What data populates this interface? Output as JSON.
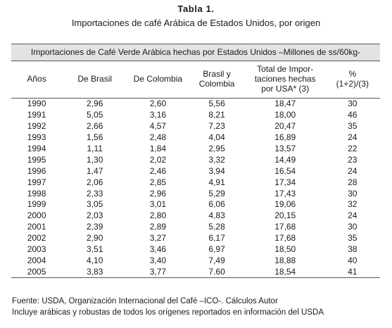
{
  "title": "Tabla 1.",
  "subtitle": "Importaciones de café Arábica de Estados Unidos, por origen",
  "table": {
    "caption": "Importaciones de Café Verde Arábica hechas por Estados Unidos –Millones de ss/60kg-",
    "headers": [
      "Años",
      "De Brasil",
      "De Colombia",
      "Brasil y\nColombia",
      "Total de Impor-\ntaciones hechas\npor USA* (3)",
      "%\n(1+2)/(3)"
    ],
    "rows": [
      [
        "1990",
        "2,96",
        "2,60",
        "5,56",
        "18,47",
        "30"
      ],
      [
        "1991",
        "5,05",
        "3,16",
        "8,21",
        "18,00",
        "46"
      ],
      [
        "1992",
        "2,66",
        "4,57",
        "7,23",
        "20,47",
        "35"
      ],
      [
        "1993",
        "1,56",
        "2,48",
        "4,04",
        "16,89",
        "24"
      ],
      [
        "1994",
        "1,11",
        "1,84",
        "2,95",
        "13,57",
        "22"
      ],
      [
        "1995",
        "1,30",
        "2,02",
        "3,32",
        "14,49",
        "23"
      ],
      [
        "1996",
        "1,47",
        "2,46",
        "3,94",
        "16,54",
        "24"
      ],
      [
        "1997",
        "2,06",
        "2,85",
        "4,91",
        "17,34",
        "28"
      ],
      [
        "1998",
        "2,33",
        "2,96",
        "5,29",
        "17,43",
        "30"
      ],
      [
        "1999",
        "3,05",
        "3,01",
        "6,06",
        "19,06",
        "32"
      ],
      [
        "2000",
        "2,03",
        "2,80",
        "4,83",
        "20,15",
        "24"
      ],
      [
        "2001",
        "2,39",
        "2,89",
        "5,28",
        "17,68",
        "30"
      ],
      [
        "2002",
        "2,90",
        "3,27",
        "6,17",
        "17,68",
        "35"
      ],
      [
        "2003",
        "3,51",
        "3,46",
        "6,97",
        "18,50",
        "38"
      ],
      [
        "2004",
        "4,10",
        "3,40",
        "7,49",
        "18,88",
        "40"
      ],
      [
        "2005",
        "3,83",
        "3,77",
        "7.60",
        "18,54",
        "41"
      ]
    ]
  },
  "notes": {
    "source": "Fuente: USDA, Organización Internacional del Café –ICO-. Cálculos Autor",
    "footnote": "Incluye arábicas y robustas de todos los orígenes reportados en información del USDA"
  }
}
